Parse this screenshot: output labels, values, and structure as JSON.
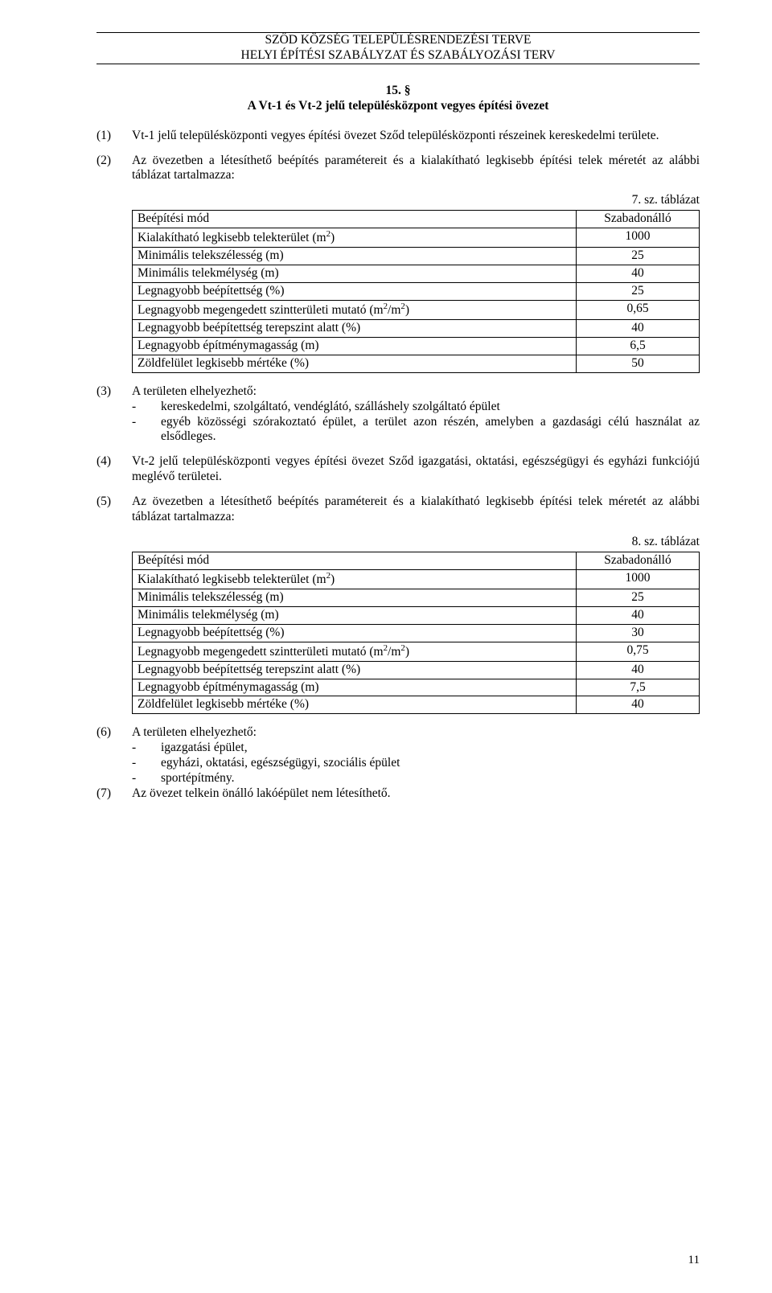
{
  "header": {
    "line1": "SZŐD KÖZSÉG TELEPÜLÉSRENDEZÉSI TERVE",
    "line2": "HELYI ÉPÍTÉSI SZABÁLYZAT ÉS SZABÁLYOZÁSI TERV"
  },
  "section": {
    "number": "15. §",
    "title": "A Vt-1 és Vt-2 jelű településközpont vegyes építési övezet"
  },
  "p1": {
    "num": "(1)",
    "text": "Vt-1 jelű településközponti vegyes építési övezet Sződ településközponti részeinek kereskedelmi területe."
  },
  "p2": {
    "num": "(2)",
    "text": "Az övezetben a létesíthető beépítés paramétereit és a kialakítható legkisebb építési telek méretét az alábbi táblázat tartalmazza:"
  },
  "table7": {
    "caption": "7. sz. táblázat",
    "rows": [
      {
        "label": "Beépítési mód",
        "value": "Szabadonálló"
      },
      {
        "label": "Kialakítható legkisebb telekterület (m²)",
        "value": "1000"
      },
      {
        "label": "Minimális telekszélesség (m)",
        "value": "25"
      },
      {
        "label": "Minimális telekmélység (m)",
        "value": "40"
      },
      {
        "label": "Legnagyobb beépítettség (%)",
        "value": "25"
      },
      {
        "label": "Legnagyobb megengedett szintterületi mutató (m²/m²)",
        "value": "0,65"
      },
      {
        "label": "Legnagyobb beépítettség terepszint alatt (%)",
        "value": "40"
      },
      {
        "label": "Legnagyobb építménymagasság (m)",
        "value": "6,5"
      },
      {
        "label": "Zöldfelület legkisebb mértéke (%)",
        "value": "50"
      }
    ]
  },
  "p3": {
    "num": "(3)",
    "text": "A területen elhelyezhető:",
    "bullets": [
      "kereskedelmi, szolgáltató, vendéglátó, szálláshely szolgáltató épület",
      "egyéb közösségi szórakoztató épület, a terület azon részén, amelyben a gazdasági célú használat az elsődleges."
    ]
  },
  "p4": {
    "num": "(4)",
    "text": "Vt-2 jelű településközponti vegyes építési övezet Sződ igazgatási, oktatási, egészségügyi és egyházi funkciójú meglévő területei."
  },
  "p5": {
    "num": "(5)",
    "text": "Az övezetben a létesíthető beépítés paramétereit és a kialakítható legkisebb építési telek méretét az alábbi táblázat tartalmazza:"
  },
  "table8": {
    "caption": "8. sz. táblázat",
    "rows": [
      {
        "label": "Beépítési mód",
        "value": "Szabadonálló"
      },
      {
        "label": "Kialakítható legkisebb telekterület (m²)",
        "value": "1000"
      },
      {
        "label": "Minimális telekszélesség (m)",
        "value": "25"
      },
      {
        "label": "Minimális telekmélység (m)",
        "value": "40"
      },
      {
        "label": "Legnagyobb beépítettség (%)",
        "value": "30"
      },
      {
        "label": "Legnagyobb megengedett szintterületi mutató (m²/m²)",
        "value": "0,75"
      },
      {
        "label": "Legnagyobb beépítettség terepszint alatt (%)",
        "value": "40"
      },
      {
        "label": "Legnagyobb építménymagasság (m)",
        "value": "7,5"
      },
      {
        "label": "Zöldfelület legkisebb mértéke (%)",
        "value": "40"
      }
    ]
  },
  "p6": {
    "num": "(6)",
    "text": "A területen elhelyezhető:",
    "bullets": [
      "igazgatási épület,",
      "egyházi, oktatási, egészségügyi, szociális épület",
      "sportépítmény."
    ]
  },
  "p7": {
    "num": "(7)",
    "text": "Az övezet telkein önálló lakóépület nem létesíthető."
  },
  "pageNumber": "11"
}
